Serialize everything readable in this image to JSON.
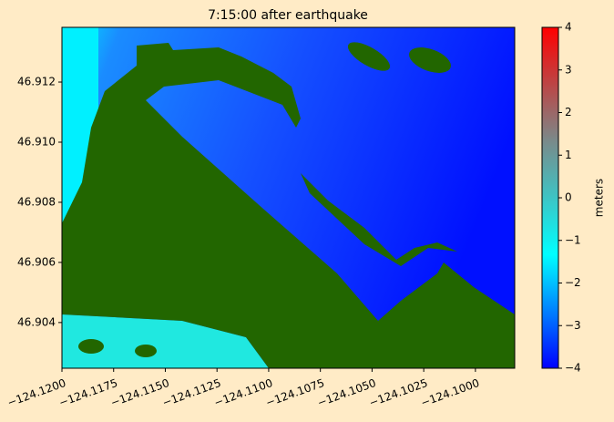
{
  "chart_data": {
    "type": "heatmap",
    "title": "7:15:00 after earthquake",
    "xlim": [
      -124.12,
      -124.0981
    ],
    "xticks": [
      {
        "value": -124.12,
        "label": "−124.1200"
      },
      {
        "value": -124.1175,
        "label": "−124.1175"
      },
      {
        "value": -124.115,
        "label": "−124.1150"
      },
      {
        "value": -124.1125,
        "label": "−124.1125"
      },
      {
        "value": -124.11,
        "label": "−124.1100"
      },
      {
        "value": -124.1075,
        "label": "−124.1075"
      },
      {
        "value": -124.105,
        "label": "−124.1050"
      },
      {
        "value": -124.1025,
        "label": "−124.1025"
      },
      {
        "value": -124.1,
        "label": "−124.1000"
      }
    ],
    "ylim": [
      46.90248,
      46.91382
    ],
    "yticks": [
      46.904,
      46.906,
      46.908,
      {
        "value": 46.91,
        "label": "46.910"
      },
      46.912
    ],
    "colorbar": {
      "label": "meters",
      "lim": [
        -4,
        4
      ],
      "ticks": [
        {
          "value": -4,
          "label": "−4"
        },
        {
          "value": -3,
          "label": "−3"
        },
        {
          "value": -2,
          "label": "−2"
        },
        {
          "value": -1,
          "label": "−1"
        },
        0,
        1,
        2,
        3,
        4
      ],
      "colors": [
        "#0000ff",
        "#00ffff",
        "#7a8a8a",
        "#ff0000"
      ]
    },
    "land_color": "#226600"
  }
}
